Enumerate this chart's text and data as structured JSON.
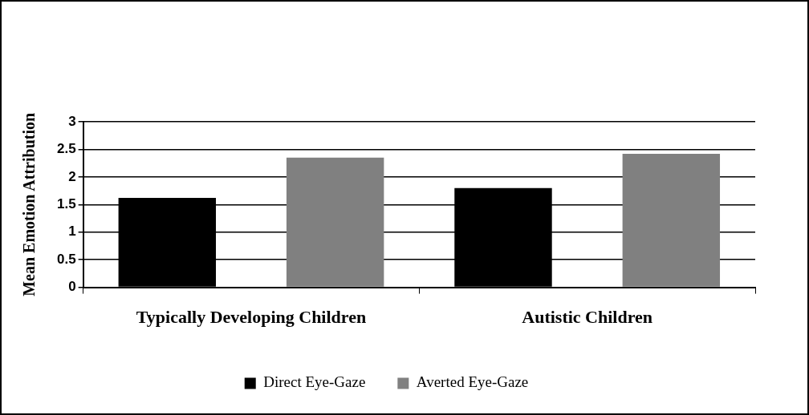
{
  "chart_data": {
    "type": "bar",
    "ylabel": "Mean Emotion Attribution",
    "categories": [
      "Typically Developing Children",
      "Autistic Children"
    ],
    "series": [
      {
        "name": "Direct Eye-Gaze",
        "color": "#000000",
        "values": [
          1.62,
          1.8
        ]
      },
      {
        "name": "Averted Eye-Gaze",
        "color": "#808080",
        "values": [
          2.35,
          2.42
        ]
      }
    ],
    "ylim": [
      0,
      3
    ],
    "yticks": [
      0,
      0.5,
      1,
      1.5,
      2,
      2.5,
      3
    ],
    "grid": "y",
    "legend": "bottom"
  }
}
